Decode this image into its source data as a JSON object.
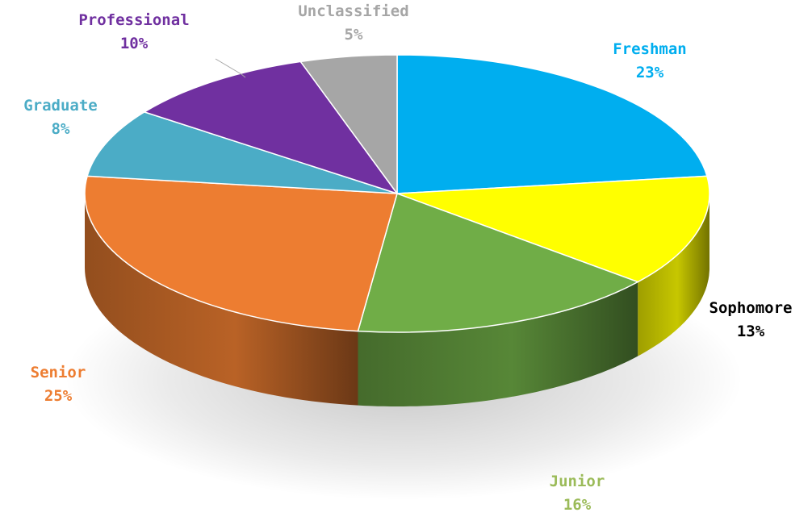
{
  "chart_data": {
    "type": "pie",
    "three_d": true,
    "legend": "none",
    "slices": [
      {
        "label": "Freshman",
        "percent_text": "23%",
        "value": 23,
        "color": "#00AEEF",
        "label_color": "#00AEEF"
      },
      {
        "label": "Sophomore",
        "percent_text": "13%",
        "value": 13,
        "color": "#FFFF00",
        "label_color": "#000000"
      },
      {
        "label": "Junior",
        "percent_text": "16%",
        "value": 16,
        "color": "#70AD47",
        "label_color": "#9BBB59"
      },
      {
        "label": "Senior",
        "percent_text": "25%",
        "value": 25,
        "color": "#ED7D31",
        "label_color": "#ED7D31"
      },
      {
        "label": "Graduate",
        "percent_text": "8%",
        "value": 8,
        "color": "#4BACC6",
        "label_color": "#4BACC6"
      },
      {
        "label": "Professional",
        "percent_text": "10%",
        "value": 10,
        "color": "#7030A0",
        "label_color": "#7030A0"
      },
      {
        "label": "Unclassified",
        "percent_text": "5%",
        "value": 5,
        "color": "#A6A6A6",
        "label_color": "#A6A6A6"
      }
    ]
  }
}
